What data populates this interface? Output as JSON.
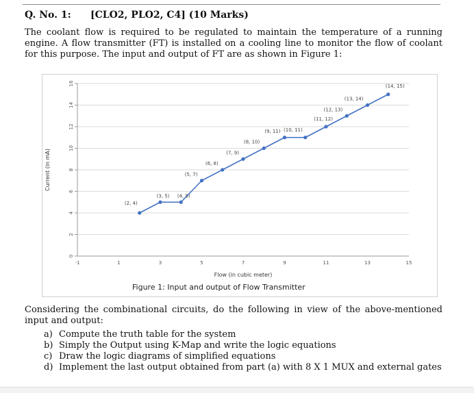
{
  "heading": {
    "qno": "Q. No. 1:",
    "clo": "[CLO2, PLO2, C4] (10 Marks)"
  },
  "intro": "The coolant flow is required to be regulated to maintain the temperature of a running engine. A flow transmitter (FT) is installed on a cooling line to monitor the flow of coolant for this purpose. The input and output of FT are as shown in Figure 1:",
  "figure_caption": "Figure 1: Input and output of Flow Transmitter",
  "chart_data": {
    "type": "line",
    "xlabel": "Flow (in cubic meter)",
    "ylabel": "Current (in mA)",
    "xlim": [
      -1,
      15
    ],
    "ylim": [
      0,
      16
    ],
    "x_ticks": [
      "-1",
      "1",
      "3",
      "5",
      "7",
      "9",
      "11",
      "13",
      "15"
    ],
    "y_ticks": [
      "0",
      "2",
      "4",
      "6",
      "8",
      "10",
      "12",
      "14",
      "16"
    ],
    "grid": "horizontal",
    "line_color": "#4472c4",
    "points": [
      {
        "x": 2,
        "y": 4,
        "label": "(2, 4)"
      },
      {
        "x": 3,
        "y": 5,
        "label": "(3, 5)"
      },
      {
        "x": 4,
        "y": 5,
        "label": "(4, 5)"
      },
      {
        "x": 5,
        "y": 7,
        "label": "(5, 7)"
      },
      {
        "x": 6,
        "y": 8,
        "label": "(6, 8)"
      },
      {
        "x": 7,
        "y": 9,
        "label": "(7, 9)"
      },
      {
        "x": 8,
        "y": 10,
        "label": "(8, 10)"
      },
      {
        "x": 9,
        "y": 11,
        "label": "(9, 11)"
      },
      {
        "x": 10,
        "y": 11,
        "label": "(10, 11)"
      },
      {
        "x": 11,
        "y": 12,
        "label": "(11, 12)"
      },
      {
        "x": 12,
        "y": 13,
        "label": "(12, 13)"
      },
      {
        "x": 13,
        "y": 14,
        "label": "(13, 14)"
      },
      {
        "x": 14,
        "y": 15,
        "label": "(14, 15)"
      }
    ]
  },
  "consider": "Considering the combinational circuits, do the following in view of the above-mentioned input and output:",
  "tasks": [
    {
      "letter": "a)",
      "text": "Compute the truth table for the system"
    },
    {
      "letter": "b)",
      "text": "Simply the Output using K-Map and write the logic equations"
    },
    {
      "letter": "c)",
      "text": "Draw the logic diagrams of simplified equations"
    },
    {
      "letter": "d)",
      "text": "Implement the last output obtained from part (a) with 8 X 1 MUX and external gates"
    }
  ]
}
